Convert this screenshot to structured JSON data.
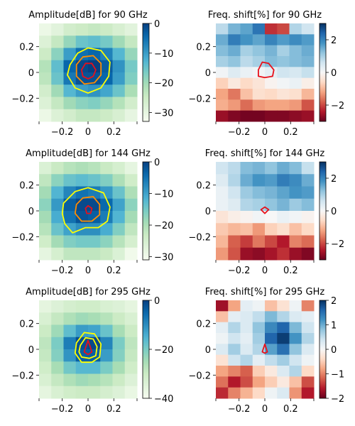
{
  "figure": {
    "layout": "3 rows x 2 columns",
    "panels": [
      {
        "title": "Amplitude[dB] for 90 GHz",
        "type": "heatmap",
        "colormap": "GnBu",
        "clim": [
          -33,
          0
        ],
        "colorbar_ticks": [
          0,
          -10,
          -20,
          -30
        ],
        "xlim": [
          -0.38,
          0.38
        ],
        "ylim": [
          -0.38,
          0.38
        ],
        "xticks": [
          -0.2,
          0,
          0.2
        ],
        "yticks": [
          0.2,
          0,
          -0.2
        ],
        "grid": [
          [
            -31,
            -29,
            -26,
            -25,
            -24,
            -25,
            -27,
            -29
          ],
          [
            -28,
            -24,
            -19,
            -15,
            -14,
            -16,
            -20,
            -24
          ],
          [
            -25,
            -18,
            -10,
            -5,
            -4,
            -7,
            -13,
            -19
          ],
          [
            -22,
            -14,
            -4,
            -1,
            0,
            -3,
            -9,
            -16
          ],
          [
            -23,
            -15,
            -6,
            -2,
            -2,
            -4,
            -10,
            -17
          ],
          [
            -26,
            -20,
            -13,
            -10,
            -9,
            -11,
            -15,
            -21
          ],
          [
            -28,
            -24,
            -20,
            -18,
            -17,
            -19,
            -22,
            -26
          ],
          [
            -31,
            -28,
            -26,
            -24,
            -24,
            -25,
            -27,
            -30
          ]
        ],
        "contours": [
          {
            "level": "outer",
            "color": "#ffff00",
            "points": [
              [
                -0.14,
                0.06
              ],
              [
                -0.08,
                0.15
              ],
              [
                0,
                0.19
              ],
              [
                0.1,
                0.17
              ],
              [
                0.17,
                0.08
              ],
              [
                0.16,
                -0.03
              ],
              [
                0.1,
                -0.12
              ],
              [
                0,
                -0.16
              ],
              [
                -0.1,
                -0.12
              ],
              [
                -0.16,
                -0.02
              ]
            ]
          },
          {
            "level": "middle",
            "color": "#ff8c00",
            "points": [
              [
                -0.09,
                0.06
              ],
              [
                -0.04,
                0.12
              ],
              [
                0.04,
                0.13
              ],
              [
                0.1,
                0.07
              ],
              [
                0.1,
                -0.02
              ],
              [
                0.05,
                -0.08
              ],
              [
                -0.03,
                -0.09
              ],
              [
                -0.09,
                -0.03
              ]
            ]
          },
          {
            "level": "inner",
            "color": "#e8101a",
            "points": [
              [
                -0.05,
                0.02
              ],
              [
                -0.02,
                0.07
              ],
              [
                0.03,
                0.07
              ],
              [
                0.06,
                0.02
              ],
              [
                0.04,
                -0.03
              ],
              [
                0,
                -0.05
              ],
              [
                -0.04,
                -0.03
              ]
            ]
          }
        ]
      },
      {
        "title": "Freq. shift[%] for 90 GHz",
        "type": "heatmap",
        "colormap": "RdBu",
        "clim": [
          -3,
          3
        ],
        "colorbar_ticks": [
          2,
          0,
          -2
        ],
        "xlim": [
          -0.38,
          0.38
        ],
        "ylim": [
          -0.38,
          0.38
        ],
        "xticks": [
          -0.2,
          0,
          0.2
        ],
        "yticks": [
          0.2,
          0,
          -0.2
        ],
        "grid": [
          [
            0.8,
            1.4,
            1.6,
            2.2,
            -2.2,
            -2.0,
            0.9,
            0.6
          ],
          [
            1.5,
            2.1,
            1.8,
            1.6,
            2.0,
            1.7,
            1.9,
            1.7
          ],
          [
            1.3,
            1.5,
            1.0,
            1.2,
            1.4,
            1.0,
            1.3,
            1.5
          ],
          [
            1.0,
            1.2,
            0.8,
            1.0,
            1.3,
            1.2,
            1.3,
            1.4
          ],
          [
            0.1,
            0.4,
            0.2,
            0.1,
            0.3,
            0.6,
            0.5,
            0.7
          ],
          [
            -0.7,
            -0.3,
            -0.6,
            -0.4,
            -0.1,
            0.1,
            0.2,
            -0.2
          ],
          [
            -1.2,
            -1.6,
            -0.9,
            -0.5,
            -0.6,
            -0.4,
            -0.5,
            -1.0
          ],
          [
            -1.1,
            -1.3,
            -1.7,
            -1.3,
            -1.2,
            -1.2,
            -1.3,
            -1.9
          ],
          [
            -2.6,
            -2.8,
            -2.9,
            -2.9,
            -2.8,
            -2.8,
            -2.7,
            -2.6
          ]
        ],
        "contours": [
          {
            "level": "inner",
            "color": "#e8101a",
            "points": [
              [
                -0.05,
                0.02
              ],
              [
                -0.02,
                0.08
              ],
              [
                0.03,
                0.07
              ],
              [
                0.07,
                0.02
              ],
              [
                0.06,
                -0.03
              ],
              [
                0,
                -0.04
              ],
              [
                -0.05,
                -0.03
              ]
            ]
          }
        ]
      },
      {
        "title": "Amplitude[dB] for 144 GHz",
        "type": "heatmap",
        "colormap": "GnBu",
        "clim": [
          -31,
          0
        ],
        "colorbar_ticks": [
          0,
          -10,
          -20,
          -30
        ],
        "xlim": [
          -0.38,
          0.38
        ],
        "ylim": [
          -0.38,
          0.38
        ],
        "xticks": [
          -0.2,
          0,
          0.2
        ],
        "yticks": [
          0.2,
          0,
          -0.2
        ],
        "grid": [
          [
            -26,
            -23,
            -21,
            -20,
            -21,
            -23,
            -25,
            -28
          ],
          [
            -22,
            -17,
            -14,
            -13,
            -14,
            -16,
            -20,
            -24
          ],
          [
            -19,
            -12,
            -7,
            -5,
            -6,
            -9,
            -14,
            -20
          ],
          [
            -17,
            -9,
            -3,
            -1,
            -1,
            -4,
            -10,
            -17
          ],
          [
            -19,
            -11,
            -5,
            -2,
            -3,
            -6,
            -12,
            -19
          ],
          [
            -21,
            -14,
            -10,
            -8,
            -8,
            -11,
            -16,
            -22
          ],
          [
            -24,
            -19,
            -16,
            -15,
            -15,
            -17,
            -21,
            -25
          ],
          [
            -28,
            -25,
            -22,
            -22,
            -22,
            -23,
            -26,
            -30
          ]
        ],
        "contours": [
          {
            "level": "outer",
            "color": "#ffff00",
            "points": [
              [
                -0.19,
                0.06
              ],
              [
                -0.1,
                0.15
              ],
              [
                0,
                0.18
              ],
              [
                0.12,
                0.14
              ],
              [
                0.17,
                0.03
              ],
              [
                0.15,
                -0.08
              ],
              [
                0.08,
                -0.13
              ],
              [
                -0.02,
                -0.13
              ],
              [
                -0.12,
                -0.17
              ],
              [
                -0.18,
                -0.1
              ],
              [
                -0.2,
                -0.02
              ]
            ]
          },
          {
            "level": "middle",
            "color": "#ff8c00",
            "points": [
              [
                -0.09,
                0.05
              ],
              [
                -0.04,
                0.1
              ],
              [
                0.04,
                0.11
              ],
              [
                0.09,
                0.05
              ],
              [
                0.09,
                -0.03
              ],
              [
                0.03,
                -0.08
              ],
              [
                -0.05,
                -0.08
              ],
              [
                -0.1,
                -0.02
              ]
            ]
          },
          {
            "level": "inner",
            "color": "#e8101a",
            "points": [
              [
                -0.02,
                0.02
              ],
              [
                0,
                0.04
              ],
              [
                0.03,
                0.02
              ],
              [
                0.02,
                -0.02
              ],
              [
                -0.01,
                -0.02
              ]
            ]
          }
        ]
      },
      {
        "title": "Freq. shift[%] for 144 GHz",
        "type": "heatmap",
        "colormap": "RdBu",
        "clim": [
          -3,
          3
        ],
        "colorbar_ticks": [
          2,
          0,
          -2
        ],
        "xlim": [
          -0.38,
          0.38
        ],
        "ylim": [
          -0.38,
          0.38
        ],
        "xticks": [
          -0.2,
          0,
          0.2
        ],
        "yticks": [
          0.2,
          0,
          -0.2
        ],
        "grid": [
          [
            0.6,
            0.8,
            1.3,
            1.4,
            1.2,
            1.5,
            1.3,
            0.7
          ],
          [
            0.4,
            0.9,
            1.5,
            1.8,
            1.7,
            2.1,
            1.9,
            1.5
          ],
          [
            0.2,
            0.6,
            1.1,
            1.3,
            1.4,
            1.6,
            1.8,
            1.7
          ],
          [
            0.2,
            0.4,
            0.9,
            1.0,
            1.2,
            1.4,
            1.1,
            1.3
          ],
          [
            -0.4,
            -0.2,
            -0.1,
            0.1,
            0.0,
            0.2,
            0.1,
            -0.1
          ],
          [
            -0.8,
            -1.0,
            -0.9,
            -1.3,
            -0.7,
            -0.5,
            -0.9,
            -0.6
          ],
          [
            -1.0,
            -1.8,
            -2.1,
            -1.6,
            -2.0,
            -2.4,
            -1.5,
            -1.7
          ],
          [
            -1.3,
            -1.9,
            -2.6,
            -2.7,
            -2.5,
            -2.2,
            -2.6,
            -2.8
          ]
        ],
        "contours": [
          {
            "level": "inner",
            "color": "#e8101a",
            "points": [
              [
                -0.03,
                0.01
              ],
              [
                0,
                0.03
              ],
              [
                0.03,
                0.01
              ],
              [
                0,
                -0.02
              ]
            ]
          }
        ]
      },
      {
        "title": "Amplitude[dB] for 295 GHz",
        "type": "heatmap",
        "colormap": "GnBu",
        "clim": [
          -40,
          0
        ],
        "colorbar_ticks": [
          0,
          -20,
          -40
        ],
        "xlim": [
          -0.38,
          0.38
        ],
        "ylim": [
          -0.38,
          0.38
        ],
        "xticks": [
          -0.2,
          0,
          0.2
        ],
        "yticks": [
          0.2,
          0,
          -0.2
        ],
        "grid": [
          [
            -36,
            -34,
            -32,
            -31,
            -31,
            -33,
            -34,
            -36
          ],
          [
            -33,
            -29,
            -26,
            -24,
            -25,
            -27,
            -30,
            -33
          ],
          [
            -30,
            -24,
            -17,
            -12,
            -13,
            -18,
            -25,
            -30
          ],
          [
            -28,
            -20,
            -8,
            -2,
            -1,
            -9,
            -20,
            -28
          ],
          [
            -29,
            -21,
            -11,
            -4,
            -4,
            -12,
            -21,
            -29
          ],
          [
            -31,
            -25,
            -19,
            -16,
            -16,
            -20,
            -25,
            -31
          ],
          [
            -33,
            -29,
            -26,
            -24,
            -25,
            -27,
            -30,
            -34
          ],
          [
            -36,
            -33,
            -31,
            -30,
            -30,
            -32,
            -34,
            -37
          ]
        ],
        "contours": [
          {
            "level": "outer",
            "color": "#ffff00",
            "points": [
              [
                -0.09,
                0.05
              ],
              [
                -0.03,
                0.13
              ],
              [
                0.05,
                0.12
              ],
              [
                0.1,
                0.04
              ],
              [
                0.09,
                -0.06
              ],
              [
                0.03,
                -0.1
              ],
              [
                -0.05,
                -0.1
              ],
              [
                -0.1,
                -0.03
              ]
            ]
          },
          {
            "level": "middle",
            "color": "#ffff00",
            "points": [
              [
                -0.06,
                0.03
              ],
              [
                -0.02,
                0.09
              ],
              [
                0.04,
                0.08
              ],
              [
                0.07,
                0.02
              ],
              [
                0.06,
                -0.05
              ],
              [
                0.01,
                -0.07
              ],
              [
                -0.05,
                -0.06
              ],
              [
                -0.07,
                -0.02
              ]
            ]
          },
          {
            "level": "inner",
            "color": "#e8101a",
            "points": [
              [
                -0.03,
                -0.02
              ],
              [
                0,
                0.07
              ],
              [
                0.03,
                -0.02
              ],
              [
                0,
                -0.04
              ]
            ]
          }
        ]
      },
      {
        "title": "Freq. shift[%] for 295 GHz",
        "type": "heatmap",
        "colormap": "RdBu",
        "clim": [
          -2,
          2
        ],
        "colorbar_ticks": [
          2,
          1,
          0,
          -1,
          -2
        ],
        "xlim": [
          -0.38,
          0.38
        ],
        "ylim": [
          -0.38,
          0.38
        ],
        "xticks": [
          -0.2,
          0,
          0.2
        ],
        "yticks": [
          0.2,
          0,
          -0.2
        ],
        "grid": [
          [
            -1.7,
            -0.8,
            0.2,
            0.1,
            -0.6,
            -0.3,
            0.1,
            -1.0
          ],
          [
            -0.6,
            0.2,
            0.3,
            0.5,
            0.9,
            0.6,
            0.3,
            0.2
          ],
          [
            0.2,
            0.6,
            0.3,
            0.8,
            1.3,
            1.6,
            0.9,
            0.4
          ],
          [
            0.1,
            0.4,
            0.2,
            0.7,
            1.6,
            1.9,
            1.2,
            0.6
          ],
          [
            0.3,
            0.7,
            0.3,
            0.6,
            1.1,
            1.5,
            0.8,
            0.3
          ],
          [
            -0.3,
            0.4,
            0.6,
            0.2,
            0.5,
            0.7,
            0.4,
            0.1
          ],
          [
            -0.8,
            -1.0,
            -1.2,
            -0.5,
            -0.2,
            0.3,
            0.6,
            -0.4
          ],
          [
            -1.1,
            -1.6,
            -1.3,
            -0.8,
            -0.5,
            -0.2,
            -0.6,
            -1.3
          ],
          [
            -1.5,
            -1.0,
            -0.7,
            -0.4,
            0.1,
            0.3,
            -0.9,
            -1.6
          ]
        ],
        "contours": [
          {
            "level": "inner",
            "color": "#e8101a",
            "points": [
              [
                -0.02,
                -0.02
              ],
              [
                0,
                0.04
              ],
              [
                0.02,
                -0.02
              ],
              [
                0,
                -0.03
              ]
            ]
          }
        ]
      }
    ]
  }
}
